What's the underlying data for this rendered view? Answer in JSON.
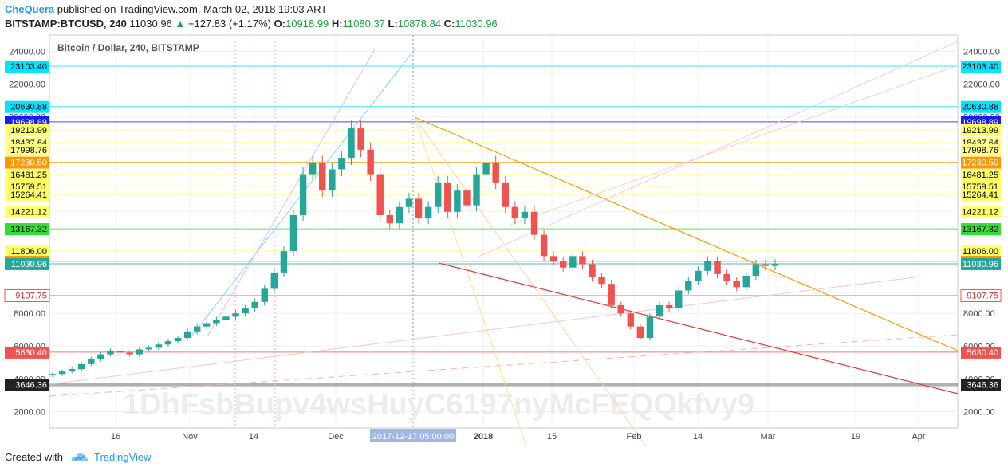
{
  "header": {
    "author": "CheQuera",
    "published_text": "published on TradingView.com, March 02, 2018 19:03 ART",
    "symbol": "BITSTAMP:BTCUSD, 240",
    "last": "11030.96",
    "change": "+127.83 (+1.17%)",
    "o_label": "O:",
    "o_value": "10918.99",
    "h_label": "H:",
    "h_value": "11080.37",
    "l_label": "L:",
    "l_value": "10878.84",
    "c_label": "C:",
    "c_value": "11030.96"
  },
  "footer": {
    "created_with": "Created with",
    "brand": "TradingView"
  },
  "colors": {
    "up": "#26a69a",
    "down": "#ef5350",
    "accent": "#2196f3"
  },
  "chart_data": {
    "type": "candlestick",
    "title": "Bitcoin / Dollar, 240, BITSTAMP",
    "watermark": "1DhFsbBupv4wsHuyC6197nyMcFEQQkfvy9",
    "y_ticks": [
      "24000.00",
      "22000.00",
      "20000.00",
      "8000.00",
      "6000.00",
      "4000.00",
      "2000.00"
    ],
    "ylim": [
      1000,
      25000
    ],
    "x_ticks": [
      "16",
      "Nov",
      "14",
      "Dec",
      "2018",
      "15",
      "Feb",
      "14",
      "Mar",
      "19",
      "Apr"
    ],
    "x_marker_label": "2017-12-17 05:00:00",
    "price_levels": [
      {
        "value": "23103.40",
        "color": "#00e5ff"
      },
      {
        "value": "20630.88",
        "color": "#00e5ff"
      },
      {
        "value": "19698.89",
        "color": "#1a1aff"
      },
      {
        "value": "19213.99",
        "color": "#ffff66"
      },
      {
        "value": "18437.64",
        "color": "#ffff88"
      },
      {
        "value": "17998.76",
        "color": "#ffff88"
      },
      {
        "value": "17230.50",
        "color": "#ff9800"
      },
      {
        "value": "16481.25",
        "color": "#ffff66"
      },
      {
        "value": "15759.51",
        "color": "#ffff66"
      },
      {
        "value": "15264.41",
        "color": "#ffff66"
      },
      {
        "value": "14221.12",
        "color": "#ffff66"
      },
      {
        "value": "13167.32",
        "color": "#33dd33"
      },
      {
        "value": "11806.00",
        "color": "#ffff66"
      },
      {
        "value": "11173.26",
        "color": "#ff9800"
      },
      {
        "value": "11030.96",
        "color": "#26a69a"
      },
      {
        "value": "9107.75",
        "color": "#ffffff"
      },
      {
        "value": "5630.40",
        "color": "#ef5350"
      },
      {
        "value": "3646.36",
        "color": "#222222"
      }
    ],
    "series_close": [
      4300,
      4450,
      4600,
      4900,
      5200,
      5500,
      5700,
      5600,
      5500,
      5800,
      5900,
      6100,
      6300,
      6500,
      6900,
      7200,
      7400,
      7600,
      7800,
      8000,
      8300,
      8700,
      9500,
      10500,
      11800,
      14000,
      16500,
      17200,
      15500,
      16800,
      17500,
      19300,
      18000,
      16500,
      14000,
      13500,
      14500,
      15000,
      13800,
      14500,
      16000,
      14200,
      15500,
      14600,
      16500,
      17200,
      16000,
      14500,
      13800,
      14200,
      12800,
      11500,
      11200,
      10800,
      11500,
      11000,
      10200,
      9800,
      8500,
      8000,
      7200,
      6500,
      7800,
      8500,
      8300,
      9400,
      10000,
      10600,
      11200,
      10400,
      10000,
      9600,
      10300,
      11000,
      10900,
      11030
    ]
  }
}
